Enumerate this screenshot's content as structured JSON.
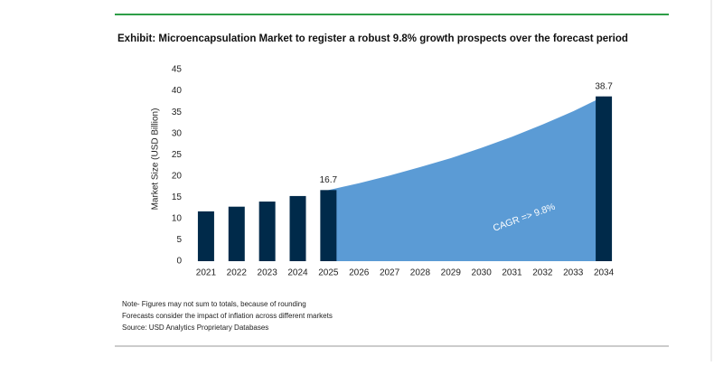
{
  "chart_data": {
    "type": "bar",
    "title": "Exhibit: Microencapsulation Market to register a robust 9.8% growth prospects over the forecast period",
    "y_label": "Market Size (USD Billion)",
    "categories": [
      "2021",
      "2022",
      "2023",
      "2024",
      "2025",
      "2026",
      "2027",
      "2028",
      "2029",
      "2030",
      "2031",
      "2032",
      "2033",
      "2034"
    ],
    "series": [
      {
        "type": "bar",
        "color": "#002a4a",
        "values": [
          11.7,
          12.8,
          14.0,
          15.3,
          16.7,
          null,
          null,
          null,
          null,
          null,
          null,
          null,
          null,
          38.7
        ],
        "value_labels": [
          null,
          null,
          null,
          null,
          "16.7",
          null,
          null,
          null,
          null,
          null,
          null,
          null,
          null,
          "38.7"
        ]
      },
      {
        "type": "area",
        "color": "#5b9bd5",
        "values": [
          null,
          null,
          null,
          null,
          16.7,
          18.3,
          20.1,
          22.1,
          24.2,
          26.6,
          29.2,
          32.1,
          35.2,
          38.7
        ]
      }
    ],
    "annotation": "CAGR =>  9.8%",
    "ylim": [
      0,
      45
    ],
    "yticks": [
      0,
      5,
      10,
      15,
      20,
      25,
      30,
      35,
      40,
      45
    ],
    "grid": false,
    "notes": [
      "Note- Figures may not sum to totals, because of rounding",
      "Forecasts consider the impact of inflation across different markets",
      "Source: USD Analytics Proprietary Databases"
    ]
  }
}
